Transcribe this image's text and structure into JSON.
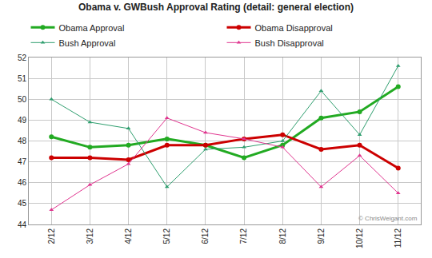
{
  "chart_data": {
    "type": "line",
    "title": "Obama v. GWBush Approval Rating (detail: general election)",
    "categories": [
      "2/12",
      "3/12",
      "4/12",
      "5/12",
      "6/12",
      "7/12",
      "8/12",
      "9/12",
      "10/12",
      "11/12"
    ],
    "series": [
      {
        "name": "Obama Approval",
        "color": "#22aa22",
        "marker": "circle",
        "line_style": "solid",
        "values": [
          48.2,
          47.7,
          47.8,
          48.1,
          47.8,
          47.2,
          47.8,
          49.1,
          49.4,
          50.6
        ]
      },
      {
        "name": "Obama Disapproval",
        "color": "#cc0000",
        "marker": "circle",
        "line_style": "solid",
        "values": [
          47.2,
          47.2,
          47.1,
          47.8,
          47.8,
          48.1,
          48.3,
          47.6,
          47.8,
          46.7
        ]
      },
      {
        "name": "Bush Approval",
        "color": "#2e9e6e",
        "marker": "triangle",
        "line_style": "solid",
        "values": [
          50.0,
          48.9,
          48.6,
          45.8,
          47.6,
          47.7,
          48.0,
          50.4,
          48.3,
          51.6
        ]
      },
      {
        "name": "Bush Disapproval",
        "color": "#e0358f",
        "marker": "triangle",
        "line_style": "solid",
        "values": [
          44.7,
          45.9,
          46.9,
          49.1,
          48.4,
          48.1,
          47.7,
          45.8,
          47.3,
          45.5
        ]
      }
    ],
    "ylim": [
      44,
      52
    ],
    "yticks": [
      44,
      45,
      46,
      47,
      48,
      49,
      50,
      51,
      52
    ],
    "grid": true,
    "legend": "top",
    "annotations": [
      "© ChrisWeigant.com"
    ]
  }
}
